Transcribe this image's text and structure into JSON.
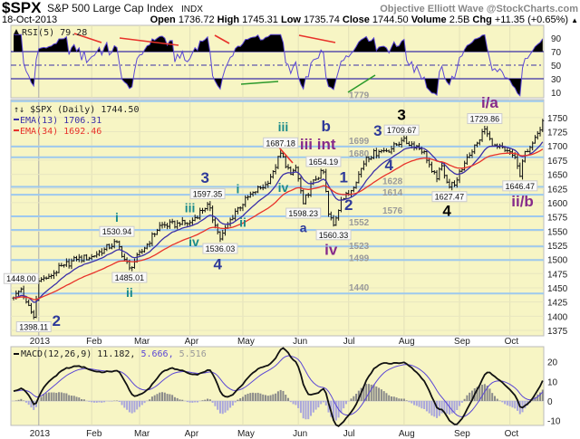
{
  "header": {
    "symbol": "$SPX",
    "name": "S&P 500 Large Cap Index",
    "exchange": "INDX",
    "source": "Objective Elliott Wave @StockCharts.com",
    "date": "18-Oct-2013",
    "open_label": "Open",
    "open": "1736.72",
    "high_label": "High",
    "high": "1745.31",
    "low_label": "Low",
    "low": "1735.74",
    "close_label": "Close",
    "close": "1744.50",
    "volume_label": "Volume",
    "volume": "2.5B",
    "chg_label": "Chg",
    "chg": "+11.35 (+0.65%)",
    "chg_arrow": "▲"
  },
  "legends": {
    "rsi": "RSI(5) 79.28",
    "price": "$SPX (Daily) 1744.50",
    "ema13": "EMA(13) 1706.31",
    "ema34": "EMA(34) 1692.46",
    "macd_name": "MACD(12,26,9) 11.182,",
    "macd_signal": "5.666,",
    "macd_hist": "5.516"
  },
  "colors": {
    "panel_bg": "#f7f5c4",
    "level_line": "#9ec9ee",
    "ema13": "#3a2fa8",
    "ema34": "#e8322a",
    "rsi_line": "#5a46d6",
    "macd_line": "#111111",
    "macd_signal": "#5a46d6",
    "hist_pos": "#8a8a8a",
    "hist_neg": "#a9a6dc",
    "wave_teal": "#1a8a8a",
    "wave_navy": "#2e3a9a",
    "wave_purple": "#862a8a",
    "wave_black": "#000000"
  },
  "chart_data": {
    "type": "line",
    "title": "$SPX S&P 500 Large Cap Index (Daily)",
    "x_unit": "trading day index (0 = 17-Dec-2012)",
    "month_ticks": [
      {
        "day": 10,
        "label": "2013"
      },
      {
        "day": 31,
        "label": "Feb"
      },
      {
        "day": 50,
        "label": "Mar"
      },
      {
        "day": 70,
        "label": "Apr"
      },
      {
        "day": 91,
        "label": "May"
      },
      {
        "day": 113,
        "label": "Jun"
      },
      {
        "day": 133,
        "label": "Jul"
      },
      {
        "day": 155,
        "label": "Aug"
      },
      {
        "day": 177,
        "label": "Sep"
      },
      {
        "day": 197,
        "label": "Oct"
      }
    ],
    "price_axis": {
      "ylim": [
        1375,
        1750
      ],
      "ticks": [
        1375,
        1400,
        1425,
        1450,
        1475,
        1500,
        1525,
        1550,
        1575,
        1600,
        1625,
        1650,
        1675,
        1700,
        1725,
        1750
      ]
    },
    "pivots": [
      [
        0,
        1432
      ],
      [
        3,
        1448
      ],
      [
        5,
        1425
      ],
      [
        8,
        1398.11
      ],
      [
        10,
        1462
      ],
      [
        14,
        1470
      ],
      [
        20,
        1490
      ],
      [
        25,
        1500
      ],
      [
        31,
        1505
      ],
      [
        36,
        1518
      ],
      [
        41,
        1530.94
      ],
      [
        44,
        1500
      ],
      [
        46,
        1485.01
      ],
      [
        52,
        1520
      ],
      [
        58,
        1560
      ],
      [
        66,
        1562
      ],
      [
        70,
        1565
      ],
      [
        77,
        1597.35
      ],
      [
        80,
        1560
      ],
      [
        82,
        1536.03
      ],
      [
        88,
        1585
      ],
      [
        95,
        1618
      ],
      [
        100,
        1632
      ],
      [
        103,
        1655
      ],
      [
        106,
        1687.18
      ],
      [
        110,
        1650
      ],
      [
        112,
        1662
      ],
      [
        115,
        1598.23
      ],
      [
        119,
        1640
      ],
      [
        123,
        1654.19
      ],
      [
        125,
        1580
      ],
      [
        127,
        1560.33
      ],
      [
        130,
        1605
      ],
      [
        133,
        1615
      ],
      [
        137,
        1650
      ],
      [
        140,
        1680
      ],
      [
        145,
        1690
      ],
      [
        150,
        1695
      ],
      [
        154,
        1709.67
      ],
      [
        160,
        1700
      ],
      [
        163,
        1690
      ],
      [
        166,
        1655
      ],
      [
        168,
        1642
      ],
      [
        170,
        1665
      ],
      [
        173,
        1627.47
      ],
      [
        176,
        1640
      ],
      [
        180,
        1680
      ],
      [
        184,
        1705
      ],
      [
        187,
        1729.86
      ],
      [
        190,
        1700
      ],
      [
        195,
        1692
      ],
      [
        199,
        1680
      ],
      [
        201,
        1646.47
      ],
      [
        203,
        1690
      ],
      [
        206,
        1705
      ],
      [
        208,
        1722
      ],
      [
        210,
        1744.5
      ]
    ],
    "levels": [
      {
        "value": 1779,
        "label": "1779"
      },
      {
        "value": 1699,
        "label": "1699"
      },
      {
        "value": 1680,
        "label": "1680"
      },
      {
        "value": 1628,
        "label": "1628"
      },
      {
        "value": 1614,
        "label": "1614"
      },
      {
        "value": 1576,
        "label": "1576"
      },
      {
        "value": 1552,
        "label": "1552"
      },
      {
        "value": 1523,
        "label": "1523"
      },
      {
        "value": 1499,
        "label": "1499"
      },
      {
        "value": 1440,
        "label": "1440"
      }
    ],
    "price_labels": [
      {
        "day": 3,
        "price": 1448.0,
        "text": "1448.00",
        "pos": "above"
      },
      {
        "day": 8,
        "price": 1398.11,
        "text": "1398.11",
        "pos": "below"
      },
      {
        "day": 41,
        "price": 1530.94,
        "text": "1530.94",
        "pos": "above"
      },
      {
        "day": 46,
        "price": 1485.01,
        "text": "1485.01",
        "pos": "below"
      },
      {
        "day": 77,
        "price": 1597.35,
        "text": "1597.35",
        "pos": "above"
      },
      {
        "day": 82,
        "price": 1536.03,
        "text": "1536.03",
        "pos": "below"
      },
      {
        "day": 106,
        "price": 1687.18,
        "text": "1687.18",
        "pos": "above"
      },
      {
        "day": 115,
        "price": 1598.23,
        "text": "1598.23",
        "pos": "below"
      },
      {
        "day": 123,
        "price": 1654.19,
        "text": "1654.19",
        "pos": "above"
      },
      {
        "day": 127,
        "price": 1560.33,
        "text": "1560.33",
        "pos": "below"
      },
      {
        "day": 154,
        "price": 1709.67,
        "text": "1709.67",
        "pos": "above"
      },
      {
        "day": 173,
        "price": 1627.47,
        "text": "1627.47",
        "pos": "below"
      },
      {
        "day": 187,
        "price": 1729.86,
        "text": "1729.86",
        "pos": "above"
      },
      {
        "day": 201,
        "price": 1646.47,
        "text": "1646.47",
        "pos": "below"
      }
    ],
    "wave_labels": [
      {
        "text": "2",
        "day": 17,
        "price": 1383,
        "color": "navy",
        "size": "big"
      },
      {
        "text": "i",
        "day": 41,
        "price": 1566,
        "color": "teal",
        "size": "mid"
      },
      {
        "text": "ii",
        "day": 46,
        "price": 1447,
        "color": "teal",
        "size": "mid"
      },
      {
        "text": "iii",
        "day": 70,
        "price": 1593,
        "color": "teal",
        "size": "mid"
      },
      {
        "text": "3",
        "day": 76,
        "price": 1635,
        "color": "navy",
        "size": "big"
      },
      {
        "text": "iv",
        "day": 73,
        "price": 1523,
        "color": "teal",
        "size": "mid"
      },
      {
        "text": "4",
        "day": 81,
        "price": 1499,
        "color": "navy",
        "size": "big"
      },
      {
        "text": "i",
        "day": 89,
        "price": 1617,
        "color": "teal",
        "size": "mid"
      },
      {
        "text": "ii",
        "day": 91,
        "price": 1558,
        "color": "teal",
        "size": "mid"
      },
      {
        "text": "iii",
        "day": 107,
        "price": 1726,
        "color": "teal",
        "size": "mid"
      },
      {
        "text": "iv",
        "day": 107,
        "price": 1619,
        "color": "teal",
        "size": "mid"
      },
      {
        "text": "iii int",
        "day": 115,
        "price": 1694,
        "color": "purple",
        "size": "big"
      },
      {
        "text": "b",
        "day": 124,
        "price": 1691,
        "color": "navy",
        "size": "big"
      },
      {
        "text": "a",
        "day": 115,
        "price": 1558,
        "color": "navy",
        "size": "mid"
      },
      {
        "text": "iv",
        "day": 126,
        "price": 1521,
        "color": "purple",
        "size": "big"
      },
      {
        "text": "1",
        "day": 131,
        "price": 1645,
        "color": "navy",
        "size": "big"
      },
      {
        "text": "2",
        "day": 133,
        "price": 1587,
        "color": "navy",
        "size": "big"
      },
      {
        "text": "3",
        "day": 146,
        "price": 1718,
        "color": "navy",
        "size": "big"
      },
      {
        "text": "4",
        "day": 149,
        "price": 1657,
        "color": "navy",
        "size": "big"
      },
      {
        "text": "3",
        "day": 154,
        "price": 1743,
        "color": "black",
        "size": "big"
      },
      {
        "text": "4",
        "day": 172,
        "price": 1586,
        "color": "black",
        "size": "big"
      },
      {
        "text": "i/a",
        "day": 189,
        "price": 1761,
        "color": "purple",
        "size": "big"
      },
      {
        "text": "ii/b",
        "day": 202,
        "price": 1603,
        "color": "purple",
        "size": "big"
      }
    ],
    "rsi_axis": {
      "ylim": [
        0,
        100
      ],
      "ticks": [
        10,
        30,
        50,
        70,
        90
      ],
      "overbought": 70,
      "oversold": 30
    },
    "macd_axis": {
      "ylim": [
        -12,
        27
      ],
      "ticks": [
        -10,
        0,
        10,
        20
      ]
    }
  }
}
